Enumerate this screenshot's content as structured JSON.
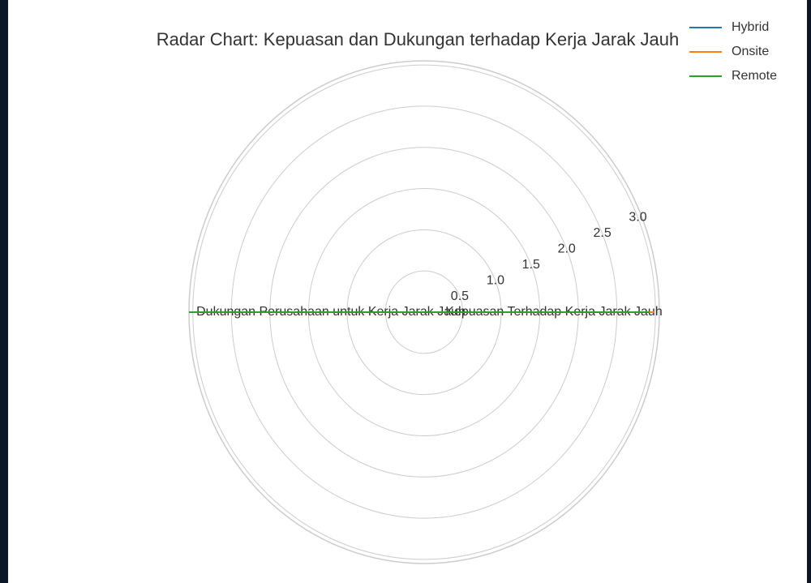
{
  "chart_data": {
    "type": "radar",
    "title": "Radar Chart: Kepuasan dan Dukungan terhadap Kerja Jarak Jauh",
    "categories": [
      "Kepuasan Terhadap Kerja Jarak Jauh",
      "Dukungan Perusahaan untuk Kerja Jarak Jauh"
    ],
    "series": [
      {
        "name": "Hybrid",
        "color": "#1f77b4",
        "values": [
          2.95,
          3.05
        ]
      },
      {
        "name": "Onsite",
        "color": "#ff7f0e",
        "values": [
          2.98,
          3.05
        ]
      },
      {
        "name": "Remote",
        "color": "#2ca02c",
        "values": [
          2.92,
          3.05
        ]
      }
    ],
    "ylim": [
      0,
      3.05
    ],
    "yticks": [
      {
        "value": 0.5,
        "label": "0.5"
      },
      {
        "value": 1.0,
        "label": "1.0"
      },
      {
        "value": 1.5,
        "label": "1.5"
      },
      {
        "value": 2.0,
        "label": "2.0"
      },
      {
        "value": 2.5,
        "label": "2.5"
      },
      {
        "value": 3.0,
        "label": "3.0"
      }
    ],
    "grid": true,
    "legend": "upper right"
  }
}
